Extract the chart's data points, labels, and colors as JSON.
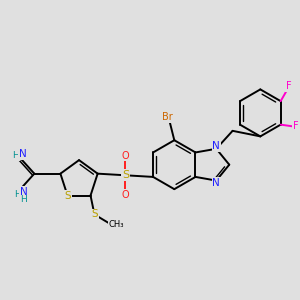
{
  "bg_color": "#e0e0e0",
  "colors": {
    "N": "#2020ff",
    "O": "#ff2020",
    "S": "#b8a000",
    "Br": "#cc6600",
    "F": "#ff00cc",
    "H": "#009090",
    "bond": "#000000"
  }
}
